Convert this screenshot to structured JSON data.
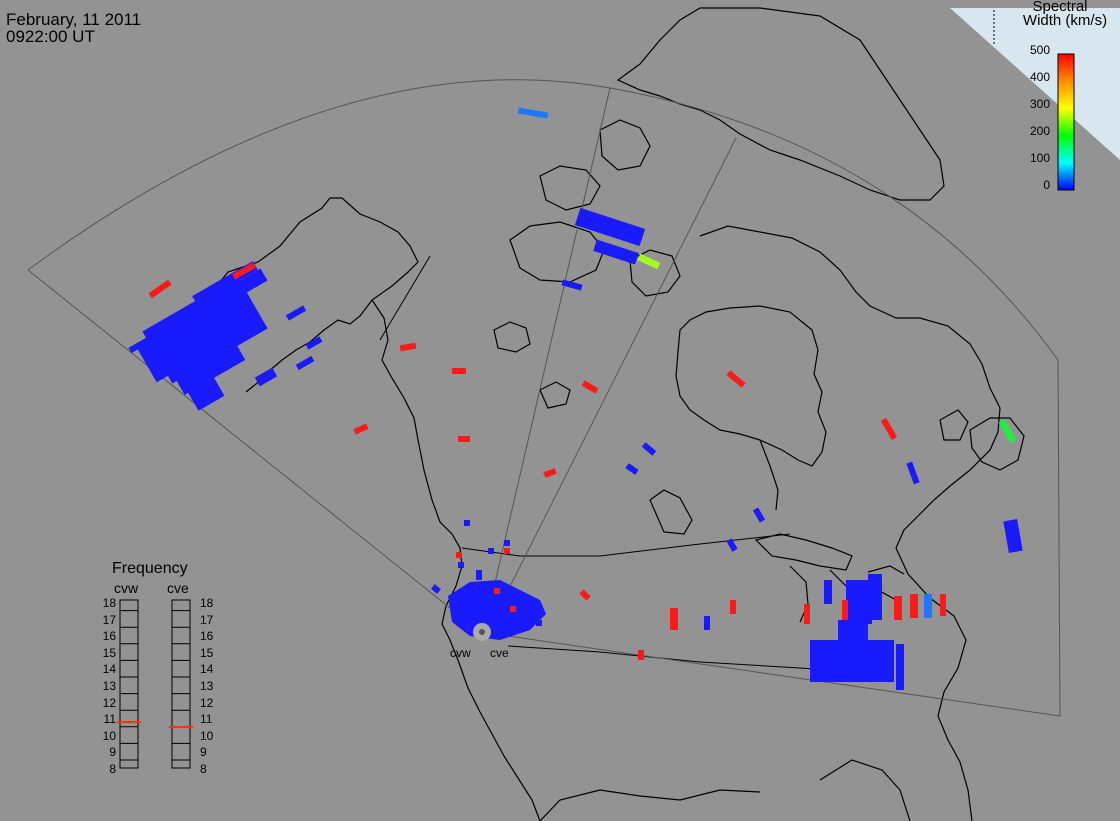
{
  "header": {
    "date": "February, 11 2011",
    "time": "0922:00 UT"
  },
  "colorbar": {
    "title_line1": "Spectral",
    "title_line2": "Width (km/s)",
    "ticks": [
      "500",
      "400",
      "300",
      "200",
      "100",
      "0"
    ],
    "range": [
      0,
      500
    ],
    "colors": [
      "#ff0000",
      "#ffa500",
      "#ffff00",
      "#00ff00",
      "#00ffff",
      "#0000ff"
    ]
  },
  "frequency_panel": {
    "title": "Frequency",
    "radars": [
      {
        "name": "cvw",
        "value_mhz": 10.9,
        "indicator_color": "#ff3300"
      },
      {
        "name": "cve",
        "value_mhz": 10.6,
        "indicator_color": "#ff3300"
      }
    ],
    "scale": [
      "18",
      "17",
      "16",
      "15",
      "14",
      "13",
      "12",
      "11",
      "10",
      "9",
      "8"
    ]
  },
  "radar_sites": [
    {
      "name": "cvw"
    },
    {
      "name": "cve"
    }
  ],
  "colors": {
    "background": "#939393",
    "coastline": "#000000",
    "fov_line": "#555555",
    "low_width": "#1a1aff",
    "high_width": "#ff1a1a"
  }
}
